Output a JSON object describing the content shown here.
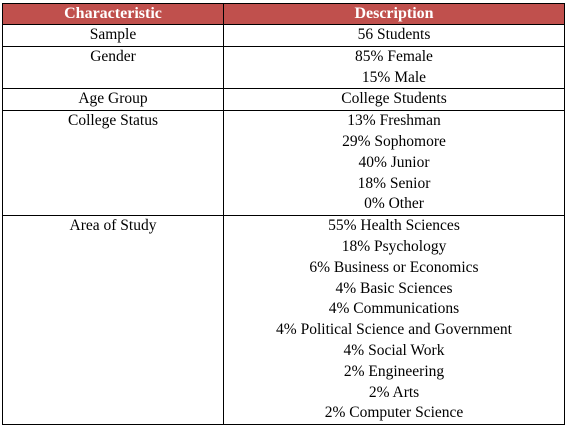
{
  "colors": {
    "header_bg": "#c0504d",
    "header_text": "#ffffff",
    "border": "#000000"
  },
  "table": {
    "headers": [
      "Characteristic",
      "Description"
    ],
    "rows": [
      {
        "characteristic": "Sample",
        "description": [
          "56 Students"
        ]
      },
      {
        "characteristic": "Gender",
        "description": [
          "85% Female",
          "15% Male"
        ]
      },
      {
        "characteristic": "Age Group",
        "description": [
          "College Students"
        ]
      },
      {
        "characteristic": "College Status",
        "description": [
          "13% Freshman",
          "29% Sophomore",
          "40% Junior",
          "18% Senior",
          "0% Other"
        ]
      },
      {
        "characteristic": "Area of Study",
        "description": [
          "55% Health Sciences",
          "18% Psychology",
          "6% Business or Economics",
          "4% Basic Sciences",
          "4% Communications",
          "4% Political Science and Government",
          "4% Social Work",
          "2% Engineering",
          "2% Arts",
          "2% Computer Science"
        ]
      }
    ]
  }
}
